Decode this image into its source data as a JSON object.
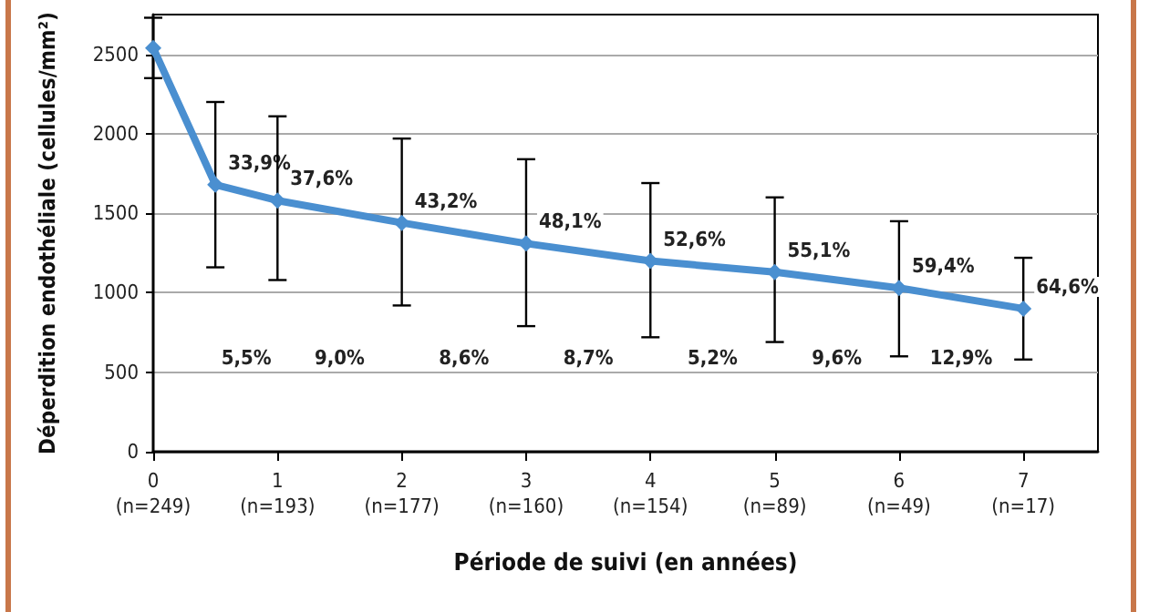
{
  "chart_data": {
    "type": "line",
    "xlabel": "Période de suivi (en années)",
    "ylabel": "Déperdition endothéliale (cellules/mm²)",
    "x": [
      0,
      0.5,
      1,
      2,
      3,
      4,
      5,
      6,
      7
    ],
    "series": [
      {
        "color": "#4a8fd0",
        "values": [
          2540,
          1680,
          1580,
          1440,
          1310,
          1200,
          1130,
          1030,
          900
        ],
        "errors": [
          [
            2350,
            2730
          ],
          [
            1160,
            2200
          ],
          [
            1080,
            2110
          ],
          [
            920,
            1970
          ],
          [
            790,
            1840
          ],
          [
            720,
            1690
          ],
          [
            690,
            1600
          ],
          [
            600,
            1450
          ],
          [
            580,
            1220
          ]
        ]
      }
    ],
    "marker": "diamond",
    "line_style": "solid",
    "xlim": [
      0,
      7.6
    ],
    "xticks": [
      0,
      1,
      2,
      3,
      4,
      5,
      6,
      7
    ],
    "ylim": [
      0,
      2750
    ],
    "yticks": [
      0,
      500,
      1000,
      1500,
      2000,
      2500
    ],
    "grid": "y",
    "annotations": [
      {
        "text": "33,9%",
        "x": 0.5,
        "y": 1680
      },
      {
        "text": "37,6%",
        "x": 1,
        "y": 1580
      },
      {
        "text": "43,2%",
        "x": 2,
        "y": 1440
      },
      {
        "text": "48,1%",
        "x": 3,
        "y": 1310
      },
      {
        "text": "52,6%",
        "x": 4,
        "y": 1200
      },
      {
        "text": "55,1%",
        "x": 5,
        "y": 1130
      },
      {
        "text": "59,4%",
        "x": 6,
        "y": 1030
      },
      {
        "text": "64,6%",
        "x": 7,
        "y": 900
      },
      "5,5%",
      "9,0%",
      "8,6%",
      "8,7%",
      "5,2%",
      "9,6%",
      "12,9%",
      "(n=249)",
      "(n=193)",
      "(n=177)",
      "(n=160)",
      "(n=154)",
      "(n=89)",
      "(n=49)",
      "(n=17)"
    ]
  }
}
